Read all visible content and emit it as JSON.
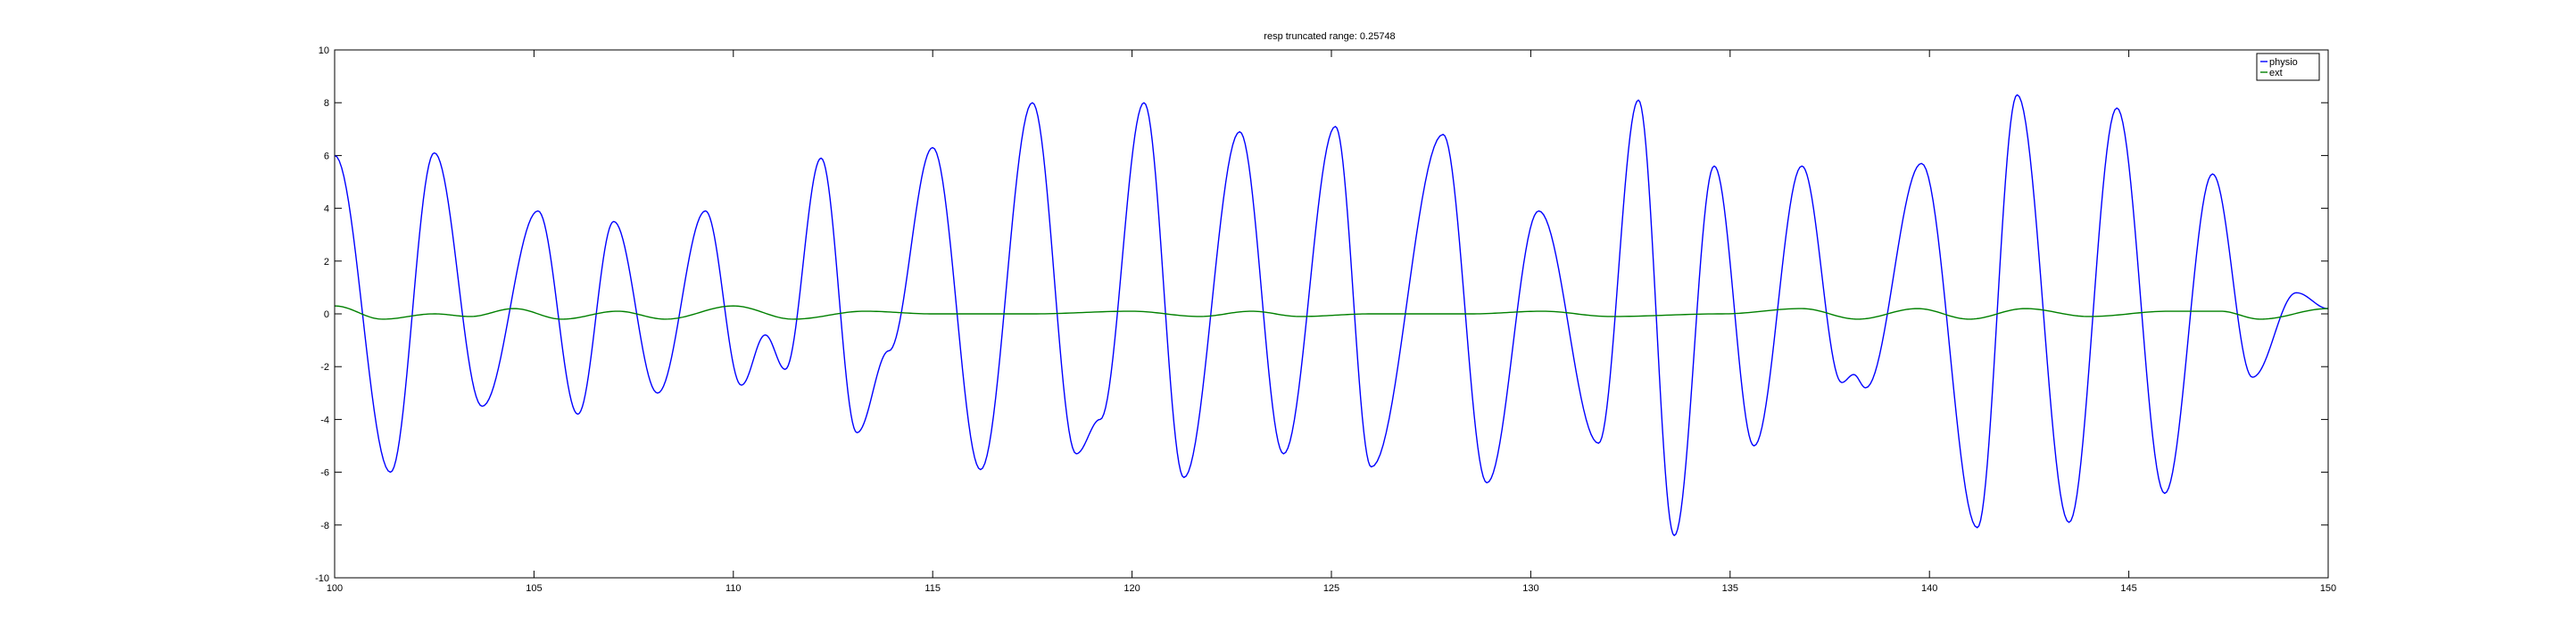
{
  "chart_data": {
    "type": "line",
    "title": "resp truncated range: 0.25748",
    "xlabel": "",
    "ylabel": "",
    "xlim": [
      100,
      150
    ],
    "ylim": [
      -10,
      10
    ],
    "xticks": [
      100,
      105,
      110,
      115,
      120,
      125,
      130,
      135,
      140,
      145,
      150
    ],
    "yticks": [
      -10,
      -8,
      -6,
      -4,
      -2,
      0,
      2,
      4,
      6,
      8,
      10
    ],
    "grid": false,
    "legend_position": "top-right",
    "series": [
      {
        "name": "physio",
        "color": "#0000ff",
        "extrema": [
          [
            100.0,
            6.0
          ],
          [
            101.4,
            -6.0
          ],
          [
            102.5,
            6.1
          ],
          [
            103.7,
            -3.5
          ],
          [
            105.1,
            3.9
          ],
          [
            106.1,
            -3.8
          ],
          [
            107.0,
            3.5
          ],
          [
            108.1,
            -3.0
          ],
          [
            109.3,
            3.9
          ],
          [
            110.2,
            -2.7
          ],
          [
            110.8,
            -0.8
          ],
          [
            111.3,
            -2.1
          ],
          [
            112.2,
            5.9
          ],
          [
            113.1,
            -4.5
          ],
          [
            113.9,
            -1.4
          ],
          [
            115.0,
            6.3
          ],
          [
            116.2,
            -5.9
          ],
          [
            117.5,
            8.0
          ],
          [
            118.6,
            -5.3
          ],
          [
            119.2,
            -4.0
          ],
          [
            120.3,
            8.0
          ],
          [
            121.3,
            -6.2
          ],
          [
            122.7,
            6.9
          ],
          [
            123.8,
            -5.3
          ],
          [
            125.1,
            7.1
          ],
          [
            126.0,
            -5.8
          ],
          [
            127.8,
            6.8
          ],
          [
            128.9,
            -6.4
          ],
          [
            130.2,
            3.9
          ],
          [
            131.7,
            -4.9
          ],
          [
            132.7,
            8.1
          ],
          [
            133.6,
            -8.4
          ],
          [
            134.6,
            5.6
          ],
          [
            135.6,
            -5.0
          ],
          [
            136.8,
            5.6
          ],
          [
            137.8,
            -2.6
          ],
          [
            138.1,
            -2.3
          ],
          [
            138.4,
            -2.8
          ],
          [
            139.8,
            5.7
          ],
          [
            141.2,
            -8.1
          ],
          [
            142.2,
            8.3
          ],
          [
            143.5,
            -7.9
          ],
          [
            144.7,
            7.8
          ],
          [
            145.9,
            -6.8
          ],
          [
            147.1,
            5.3
          ],
          [
            148.1,
            -2.4
          ],
          [
            149.2,
            0.8
          ],
          [
            150.0,
            0.2
          ]
        ]
      },
      {
        "name": "ext",
        "color": "#008000",
        "extrema": [
          [
            100.0,
            0.3
          ],
          [
            101.2,
            -0.2
          ],
          [
            102.5,
            0.0
          ],
          [
            103.4,
            -0.1
          ],
          [
            104.5,
            0.2
          ],
          [
            105.7,
            -0.2
          ],
          [
            107.1,
            0.1
          ],
          [
            108.3,
            -0.2
          ],
          [
            110.0,
            0.3
          ],
          [
            111.5,
            -0.2
          ],
          [
            113.3,
            0.1
          ],
          [
            115.0,
            0.0
          ],
          [
            117.5,
            0.0
          ],
          [
            120.0,
            0.1
          ],
          [
            121.7,
            -0.1
          ],
          [
            123.0,
            0.1
          ],
          [
            124.2,
            -0.1
          ],
          [
            126.0,
            0.0
          ],
          [
            128.5,
            0.0
          ],
          [
            130.3,
            0.1
          ],
          [
            132.0,
            -0.1
          ],
          [
            134.8,
            0.0
          ],
          [
            136.8,
            0.2
          ],
          [
            138.2,
            -0.2
          ],
          [
            139.7,
            0.2
          ],
          [
            141.0,
            -0.2
          ],
          [
            142.4,
            0.2
          ],
          [
            144.0,
            -0.1
          ],
          [
            146.0,
            0.1
          ],
          [
            147.3,
            0.1
          ],
          [
            148.3,
            -0.2
          ],
          [
            150.0,
            0.2
          ]
        ]
      }
    ]
  }
}
